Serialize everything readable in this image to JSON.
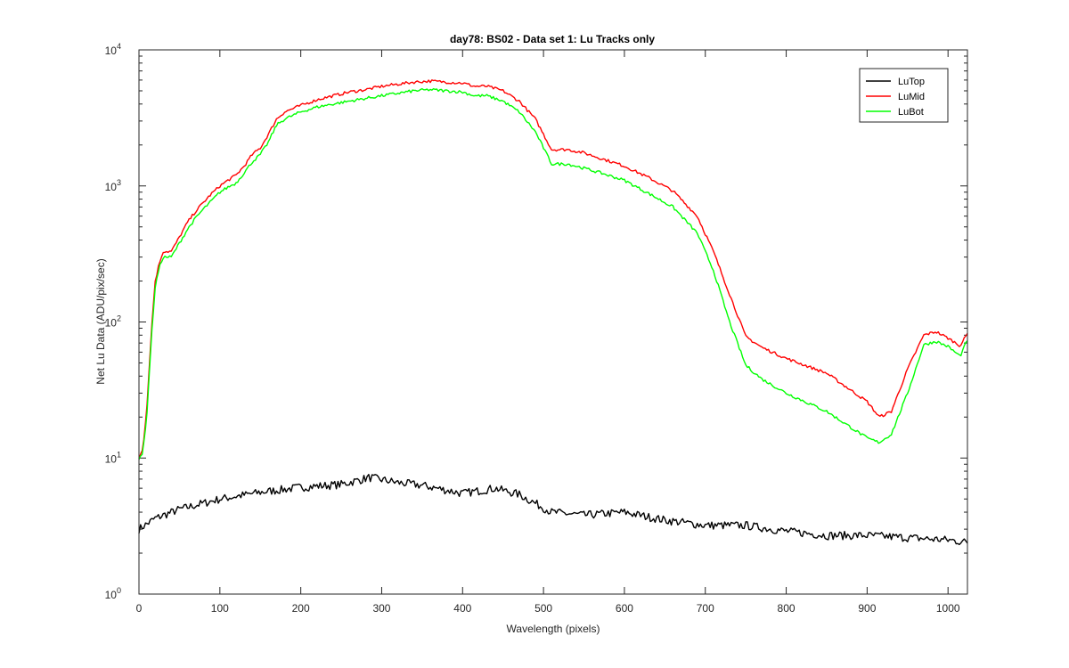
{
  "chart_data": {
    "type": "line",
    "title": "day78: BS02 - Data set 1: Lu Tracks only",
    "xlabel": "Wavelength (pixels)",
    "ylabel": "Net Lu Data (ADU/pix/sec)",
    "xlim": [
      0,
      1024
    ],
    "ylim": [
      1,
      10000
    ],
    "yscale": "log",
    "xticks": [
      0,
      100,
      200,
      300,
      400,
      500,
      600,
      700,
      800,
      900,
      1000
    ],
    "yticks": [
      {
        "value": 1,
        "base": "10",
        "exp": "0"
      },
      {
        "value": 10,
        "base": "10",
        "exp": "1"
      },
      {
        "value": 100,
        "base": "10",
        "exp": "2"
      },
      {
        "value": 1000,
        "base": "10",
        "exp": "3"
      },
      {
        "value": 10000,
        "base": "10",
        "exp": "4"
      }
    ],
    "legend_position": "top-right",
    "series": [
      {
        "name": "LuTop",
        "color": "#000000",
        "x": [
          0,
          20,
          50,
          100,
          150,
          200,
          250,
          285,
          320,
          350,
          400,
          440,
          470,
          510,
          550,
          600,
          650,
          700,
          750,
          800,
          850,
          900,
          950,
          1000,
          1024
        ],
        "y": [
          3.0,
          3.6,
          4.2,
          5.0,
          5.6,
          6.1,
          6.4,
          7.2,
          6.6,
          6.3,
          5.5,
          6.0,
          5.4,
          4.0,
          3.8,
          4.0,
          3.5,
          3.2,
          3.2,
          2.9,
          2.7,
          2.7,
          2.6,
          2.5,
          2.4
        ]
      },
      {
        "name": "LuMid",
        "color": "#ff0000",
        "x": [
          0,
          5,
          10,
          15,
          20,
          25,
          30,
          40,
          50,
          60,
          70,
          80,
          90,
          100,
          110,
          120,
          130,
          140,
          150,
          160,
          170,
          180,
          200,
          220,
          240,
          260,
          280,
          300,
          320,
          340,
          360,
          380,
          400,
          415,
          430,
          450,
          470,
          490,
          510,
          530,
          550,
          570,
          600,
          630,
          660,
          690,
          710,
          730,
          750,
          770,
          800,
          850,
          900,
          915,
          930,
          950,
          970,
          985,
          1000,
          1015,
          1024
        ],
        "y": [
          10,
          12,
          25,
          80,
          200,
          270,
          330,
          330,
          420,
          540,
          650,
          760,
          880,
          1000,
          1100,
          1200,
          1400,
          1700,
          1900,
          2400,
          3100,
          3500,
          3900,
          4300,
          4600,
          4900,
          5100,
          5400,
          5600,
          5800,
          5900,
          5800,
          5700,
          5400,
          5400,
          5000,
          4200,
          3100,
          1850,
          1850,
          1750,
          1600,
          1400,
          1150,
          920,
          600,
          330,
          160,
          78,
          65,
          54,
          42,
          26,
          20,
          22,
          45,
          80,
          85,
          76,
          67,
          82
        ]
      },
      {
        "name": "LuBot",
        "color": "#00ff00",
        "x": [
          0,
          5,
          10,
          15,
          20,
          25,
          30,
          40,
          50,
          60,
          70,
          80,
          90,
          100,
          110,
          120,
          130,
          140,
          150,
          160,
          170,
          180,
          200,
          220,
          240,
          260,
          280,
          300,
          320,
          340,
          360,
          380,
          400,
          415,
          430,
          450,
          470,
          490,
          510,
          530,
          550,
          570,
          600,
          630,
          660,
          690,
          710,
          730,
          750,
          770,
          800,
          850,
          900,
          915,
          930,
          950,
          970,
          985,
          1000,
          1015,
          1024
        ],
        "y": [
          10,
          11,
          22,
          70,
          180,
          250,
          300,
          300,
          380,
          480,
          580,
          680,
          780,
          900,
          980,
          1050,
          1250,
          1500,
          1700,
          2100,
          2800,
          3100,
          3500,
          3800,
          4000,
          4200,
          4400,
          4600,
          4800,
          5000,
          5100,
          5000,
          4900,
          4600,
          4600,
          4200,
          3500,
          2500,
          1450,
          1450,
          1350,
          1250,
          1100,
          880,
          700,
          450,
          240,
          100,
          48,
          38,
          30,
          22,
          14,
          13,
          15,
          30,
          68,
          72,
          66,
          56,
          74
        ]
      }
    ]
  }
}
